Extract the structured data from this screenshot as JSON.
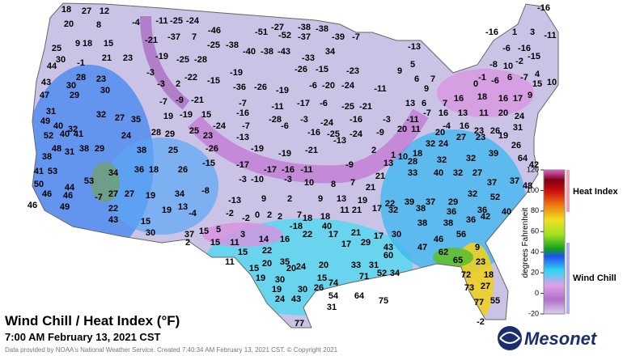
{
  "title": "Wind Chill / Heat Index (°F)",
  "subtitle": "7:00 AM February 13, 2021 CST",
  "credit": "Data provided by NOAA's National Weather Service. Created 7:40:34 AM February 13, 2021 CST. © Copyright 2021",
  "logo": "Mesonet",
  "legend": {
    "axis_label": "degrees Fahrenheit",
    "lim": [
      -20,
      120
    ],
    "ticks": [
      -20,
      0,
      20,
      40,
      60,
      80,
      100,
      120
    ],
    "heat_index": "Heat Index",
    "wind_chill": "Wind Chill"
  },
  "readings": [
    18,
    27,
    12,
    20,
    8,
    -4,
    -11,
    -25,
    -24,
    -46,
    -51,
    -52,
    -37,
    -27,
    -38,
    -38,
    -39,
    -7,
    -21,
    -37,
    7,
    -25,
    -38,
    -40,
    -38,
    -43,
    -33,
    34,
    9,
    18,
    15,
    21,
    23,
    -1,
    30,
    25,
    44,
    -19,
    -25,
    -28,
    -3,
    -22,
    -19,
    -26,
    -15,
    -23,
    9,
    -13,
    5,
    28,
    23,
    43,
    30,
    30,
    -3,
    2,
    -15,
    -36,
    -26,
    -19,
    -6,
    -20,
    -24,
    -11,
    6,
    7,
    9,
    47,
    29,
    -7,
    -9,
    -21,
    -7,
    -11,
    -17,
    -6,
    -25,
    -21,
    13,
    6,
    7,
    31,
    49,
    40,
    32,
    32,
    27,
    35,
    19,
    -19,
    15,
    -16,
    -28,
    -3,
    -24,
    -16,
    -3,
    -11,
    -7,
    -4,
    52,
    40,
    41,
    24,
    28,
    29,
    25,
    23,
    -24,
    -7,
    -6,
    -16,
    -25,
    -24,
    -9,
    20,
    11,
    20,
    16,
    23,
    26,
    31,
    48,
    31,
    38,
    29,
    38,
    25,
    -26,
    -13,
    -19,
    -19,
    -21,
    -13,
    2,
    1,
    10,
    18,
    32,
    24,
    27,
    23,
    19,
    24,
    26,
    64,
    38,
    41,
    53,
    34,
    36,
    18,
    26,
    -15,
    -17,
    -17,
    -16,
    -11,
    -9,
    13,
    28,
    32,
    32,
    39,
    42,
    50,
    44,
    53,
    27,
    27,
    19,
    34,
    -8,
    -3,
    -10,
    -3,
    10,
    8,
    7,
    21,
    21,
    33,
    40,
    32,
    27,
    37,
    37,
    48,
    46,
    46,
    -7,
    -13,
    9,
    2,
    9,
    13,
    19,
    22,
    39,
    37,
    29,
    32,
    52,
    46,
    49,
    22,
    19,
    13,
    -2,
    0,
    2,
    2,
    7,
    18,
    18,
    11,
    21,
    17,
    32,
    38,
    36,
    36,
    40,
    43,
    15,
    -4,
    -2,
    -18,
    40,
    38,
    38,
    36,
    42,
    30,
    15,
    5,
    3,
    14,
    16,
    22,
    17,
    21,
    17,
    30,
    37,
    2,
    15,
    11,
    22,
    17,
    29,
    43,
    47,
    46,
    56,
    9,
    15,
    20,
    35,
    60,
    62,
    65,
    23,
    11,
    15,
    20,
    24,
    20,
    33,
    31,
    52,
    34,
    71,
    72,
    18,
    19,
    30,
    15,
    74,
    73,
    27,
    19,
    30,
    26,
    24,
    43,
    54,
    64,
    75,
    77,
    55,
    31,
    77,
    -2,
    -16,
    -16,
    1,
    3,
    -11,
    -16,
    -6,
    -15,
    -2,
    -8,
    10,
    -1,
    -6,
    6,
    -7,
    4,
    15,
    10,
    0,
    18,
    16,
    17,
    9,
    16,
    16,
    13,
    11,
    20
  ]
}
